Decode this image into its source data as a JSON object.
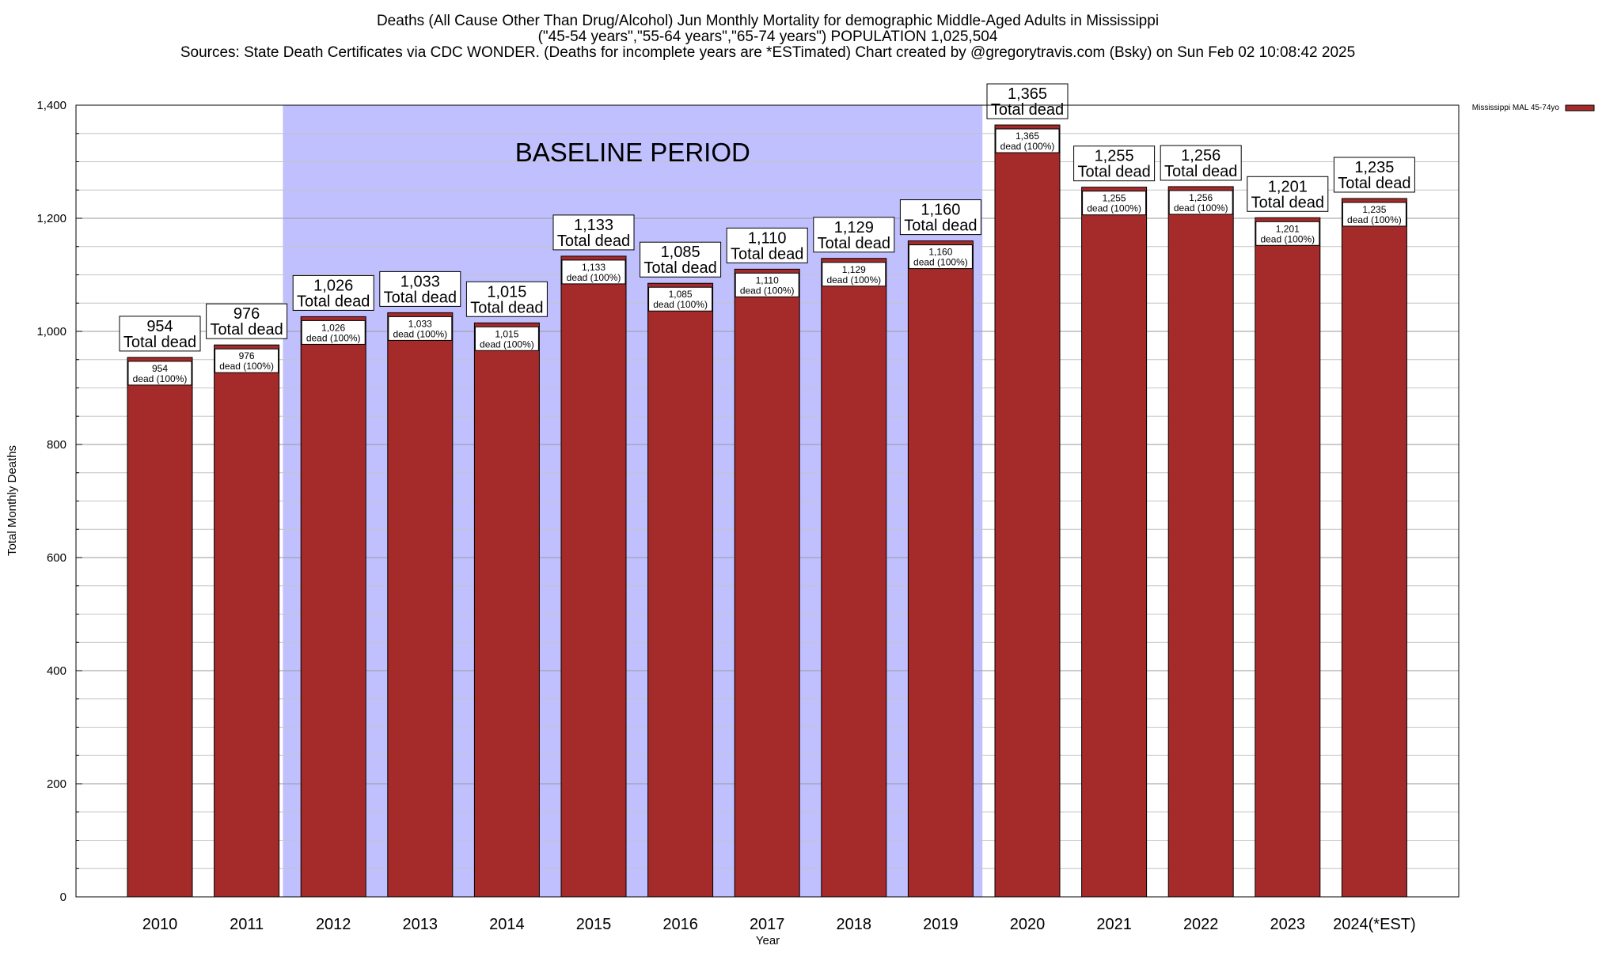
{
  "chart_data": {
    "type": "bar",
    "title_lines": [
      "Deaths (All Cause Other Than Drug/Alcohol) Jun Monthly Mortality for demographic Middle-Aged Adults in Mississippi",
      "(\"45-54 years\",\"55-64 years\",\"65-74 years\") POPULATION 1,025,504",
      "Sources: State Death Certificates via CDC WONDER. (Deaths for incomplete years are *ESTimated)                Chart created by @gregorytravis.com (Bsky) on Sun Feb 02 10:08:42 2025"
    ],
    "xlabel": "Year",
    "ylabel": "Total Monthly Deaths",
    "ylim": [
      0,
      1400
    ],
    "y_ticks": [
      0,
      200,
      400,
      600,
      800,
      1000,
      1200,
      1400
    ],
    "y_tick_labels": [
      "0",
      "200",
      "400",
      "600",
      "800",
      "1,000",
      "1,200",
      "1,400"
    ],
    "categories": [
      "2010",
      "2011",
      "2012",
      "2013",
      "2014",
      "2015",
      "2016",
      "2017",
      "2018",
      "2019",
      "2020",
      "2021",
      "2022",
      "2023",
      "2024(*EST)"
    ],
    "series": [
      {
        "name": "Mississippi MAL 45-74yo",
        "color": "#a52a2a",
        "values": [
          954,
          976,
          1026,
          1033,
          1015,
          1133,
          1085,
          1110,
          1129,
          1160,
          1365,
          1255,
          1256,
          1201,
          1235
        ]
      }
    ],
    "top_label_values": [
      "954",
      "976",
      "1,026",
      "1,033",
      "1,015",
      "1,133",
      "1,085",
      "1,110",
      "1,129",
      "1,160",
      "1,365",
      "1,255",
      "1,256",
      "1,201",
      "1,235"
    ],
    "top_label_suffix": "Total dead",
    "inner_label_suffix": "dead (100%)",
    "baseline": {
      "label": "BASELINE PERIOD",
      "from": "2012",
      "to": "2019",
      "color": "#c0c0ff"
    },
    "grid": true,
    "legend_position": "top-right"
  }
}
